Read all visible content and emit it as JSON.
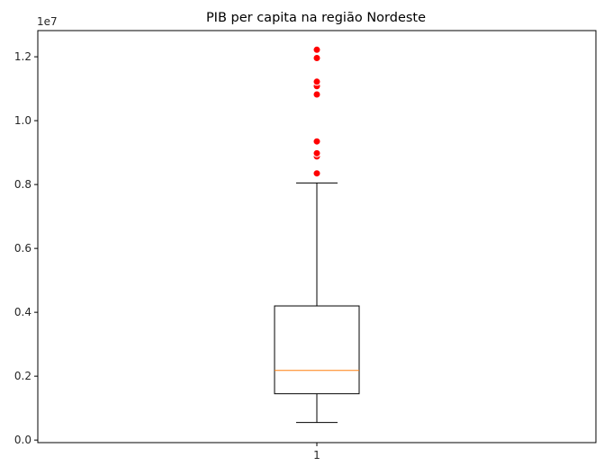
{
  "chart_data": {
    "type": "boxplot",
    "title": "PIB per capita na região Nordeste",
    "xlabel": "",
    "ylabel": "",
    "offset_label": "1e7",
    "x_tick_labels": [
      "1"
    ],
    "y_ticks": [
      0.0,
      0.2,
      0.4,
      0.6,
      0.8,
      1.0,
      1.2
    ],
    "y_tick_labels": [
      "0.0",
      "0.2",
      "0.4",
      "0.6",
      "0.8",
      "1.0",
      "1.2"
    ],
    "ylim": [
      -0.008,
      1.282
    ],
    "xlim": [
      0.5,
      1.5
    ],
    "grid": false,
    "box": {
      "position": 1,
      "whisker_low": 0.055,
      "q1": 0.145,
      "median": 0.218,
      "q3": 0.42,
      "whisker_high": 0.805
    },
    "outliers": [
      0.835,
      0.888,
      0.898,
      0.935,
      1.082,
      1.108,
      1.122,
      1.196,
      1.222
    ],
    "unit_scale": 10000000
  },
  "colors": {
    "box": "#000000",
    "median": "#ff7f0e",
    "outlier": "#ff0000",
    "outlier_edge": "#ffffff"
  }
}
